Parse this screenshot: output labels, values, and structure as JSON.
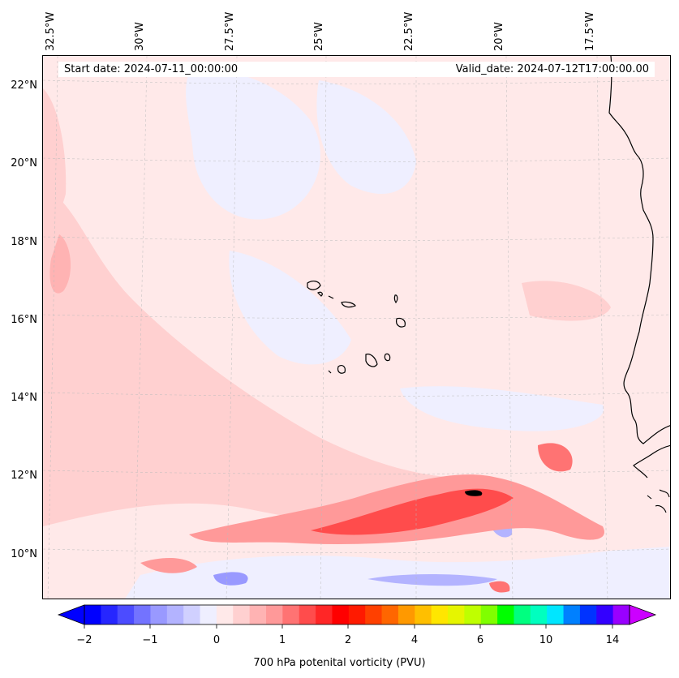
{
  "map": {
    "start_label": "Start date: 2024-07-11_00:00:00",
    "valid_label": "Valid_date: 2024-07-12T17:00:00.00",
    "lon_labels": [
      "32.5°W",
      "30°W",
      "27.5°W",
      "25°W",
      "22.5°W",
      "20°W",
      "17.5°W"
    ],
    "lat_labels": [
      "22°N",
      "20°N",
      "18°N",
      "16°N",
      "14°N",
      "12°N",
      "10°N"
    ],
    "background_color": "#ffe9e9",
    "coastline_color": "#000000"
  },
  "colorbar": {
    "title": "700 hPa potenital vorticity (PVU)",
    "tick_labels": [
      "−2",
      "−1",
      "0",
      "1",
      "2",
      "4",
      "6",
      "10",
      "14"
    ],
    "colors": [
      "#0000ff",
      "#2626ff",
      "#4c4cff",
      "#7373ff",
      "#9999ff",
      "#b3b3ff",
      "#d0d0ff",
      "#efefff",
      "#ffe9e9",
      "#ffd0d0",
      "#ffb3b3",
      "#ff9999",
      "#ff7373",
      "#ff4c4c",
      "#ff2626",
      "#ff0000",
      "#ff1a00",
      "#ff4000",
      "#ff6600",
      "#ff9900",
      "#ffbf00",
      "#ffe600",
      "#e6f500",
      "#bfff00",
      "#80ff00",
      "#00ff00",
      "#00ff80",
      "#00ffbf",
      "#00e6ff",
      "#0080ff",
      "#0033ff",
      "#3300ff",
      "#9900ff"
    ],
    "extend_low_color": "#0000ff",
    "extend_high_color": "#cc00ff"
  }
}
